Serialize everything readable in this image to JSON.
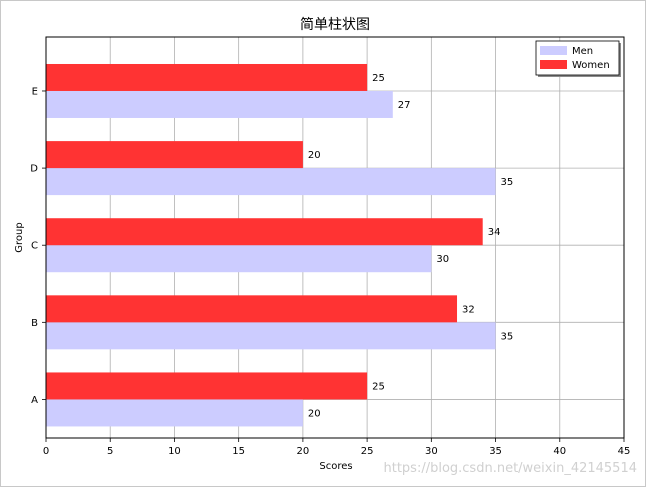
{
  "chart_data": {
    "type": "bar",
    "orientation": "horizontal",
    "title": "简单柱状图",
    "xlabel": "Scores",
    "ylabel": "Group",
    "categories": [
      "A",
      "B",
      "C",
      "D",
      "E"
    ],
    "series": [
      {
        "name": "Men",
        "values": [
          20,
          35,
          30,
          35,
          27
        ],
        "color": "#ccccff"
      },
      {
        "name": "Women",
        "values": [
          25,
          32,
          34,
          20,
          25
        ],
        "color": "#ff3333"
      }
    ],
    "xlim": [
      0,
      45
    ],
    "xticks": [
      0,
      5,
      10,
      15,
      20,
      25,
      30,
      35,
      40,
      45
    ],
    "grid": true,
    "legend_position": "top-right"
  },
  "watermark": "https://blog.csdn.net/weixin_42145514"
}
